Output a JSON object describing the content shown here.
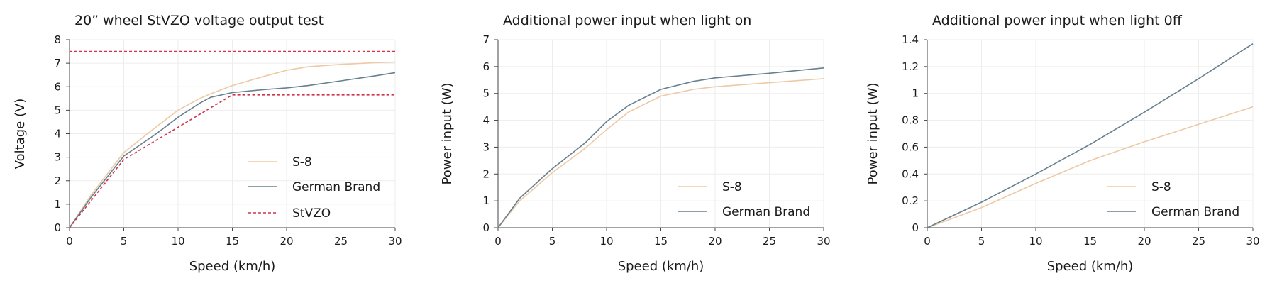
{
  "colors": {
    "s8": "#EDC9A4",
    "german": "#66808E",
    "stvzo": "#D0334A",
    "axis": "#444444",
    "grid": "#EDEDED"
  },
  "chart_data": [
    {
      "type": "line",
      "title": "20” wheel StVZO voltage output test",
      "xlabel": "Speed (km/h)",
      "ylabel": "Voltage (V)",
      "xlim": [
        0,
        30
      ],
      "ylim": [
        0,
        8
      ],
      "xticks": [
        "0",
        "5",
        "10",
        "15",
        "20",
        "25",
        "30"
      ],
      "yticks": [
        "0",
        "1",
        "2",
        "3",
        "4",
        "5",
        "6",
        "7",
        "8"
      ],
      "grid": true,
      "legend_position": "lower-right",
      "series": [
        {
          "name": "S-8",
          "style": "solid",
          "color_key": "s8",
          "x": [
            0,
            2,
            5,
            8,
            10,
            12,
            13,
            15,
            18,
            20,
            22,
            25,
            28,
            30
          ],
          "y": [
            0,
            1.4,
            3.2,
            4.3,
            5.0,
            5.5,
            5.7,
            6.05,
            6.45,
            6.7,
            6.85,
            6.95,
            7.02,
            7.05
          ]
        },
        {
          "name": "German Brand",
          "style": "solid",
          "color_key": "german",
          "x": [
            0,
            2,
            5,
            8,
            10,
            12,
            13,
            15,
            18,
            20,
            22,
            25,
            28,
            30
          ],
          "y": [
            0,
            1.3,
            3.05,
            4.0,
            4.7,
            5.3,
            5.55,
            5.75,
            5.88,
            5.95,
            6.05,
            6.25,
            6.45,
            6.6
          ]
        },
        {
          "name": "StVZO",
          "style": "dashed",
          "color_key": "stvzo",
          "x": [
            0,
            5,
            15,
            30
          ],
          "y": [
            0,
            2.9,
            5.65,
            5.65
          ]
        },
        {
          "name": "",
          "style": "dashed",
          "color_key": "stvzo",
          "x": [
            0,
            30
          ],
          "y": [
            7.5,
            7.5
          ]
        }
      ]
    },
    {
      "type": "line",
      "title": "Additional power input when light on",
      "xlabel": "Speed (km/h)",
      "ylabel": "Power input (W)",
      "xlim": [
        0,
        30
      ],
      "ylim": [
        0,
        7
      ],
      "xticks": [
        "0",
        "5",
        "10",
        "15",
        "20",
        "25",
        "30"
      ],
      "yticks": [
        "0",
        "1",
        "2",
        "3",
        "4",
        "5",
        "6",
        "7"
      ],
      "grid": true,
      "legend_position": "lower-right",
      "series": [
        {
          "name": "S-8",
          "style": "solid",
          "color_key": "s8",
          "x": [
            0,
            2,
            5,
            8,
            10,
            12,
            15,
            18,
            20,
            25,
            30
          ],
          "y": [
            0,
            1.0,
            2.05,
            2.95,
            3.65,
            4.3,
            4.9,
            5.15,
            5.25,
            5.4,
            5.55
          ]
        },
        {
          "name": "German Brand",
          "style": "solid",
          "color_key": "german",
          "x": [
            0,
            2,
            5,
            8,
            10,
            12,
            15,
            18,
            20,
            25,
            30
          ],
          "y": [
            0,
            1.1,
            2.2,
            3.15,
            3.95,
            4.55,
            5.15,
            5.45,
            5.58,
            5.75,
            5.95
          ]
        }
      ]
    },
    {
      "type": "line",
      "title": "Additional power input when light 0ff",
      "xlabel": "Speed (km/h)",
      "ylabel": "Power input (W)",
      "xlim": [
        0,
        30
      ],
      "ylim": [
        0,
        1.4
      ],
      "xticks": [
        "0",
        "5",
        "10",
        "15",
        "20",
        "25",
        "30"
      ],
      "yticks": [
        "0",
        "0.2",
        "0.4",
        "0.6",
        "0.8",
        "1",
        "1.2",
        "1.4"
      ],
      "grid": true,
      "legend_position": "lower-right",
      "series": [
        {
          "name": "S-8",
          "style": "solid",
          "color_key": "s8",
          "x": [
            0,
            5,
            10,
            15,
            20,
            25,
            30
          ],
          "y": [
            0,
            0.15,
            0.33,
            0.5,
            0.64,
            0.77,
            0.9
          ]
        },
        {
          "name": "German Brand",
          "style": "solid",
          "color_key": "german",
          "x": [
            0,
            5,
            10,
            15,
            20,
            25,
            30
          ],
          "y": [
            0,
            0.19,
            0.4,
            0.62,
            0.86,
            1.11,
            1.37
          ]
        }
      ]
    }
  ]
}
